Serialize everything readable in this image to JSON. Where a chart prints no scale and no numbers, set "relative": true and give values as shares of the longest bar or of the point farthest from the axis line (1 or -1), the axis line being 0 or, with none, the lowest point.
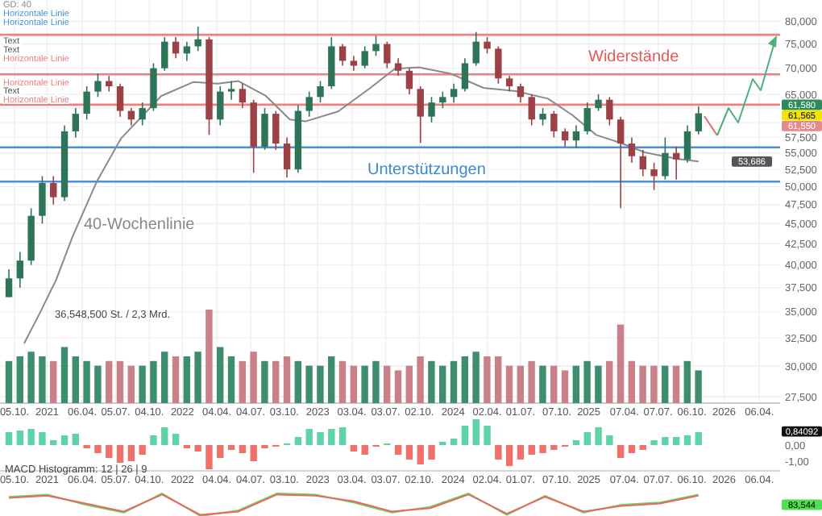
{
  "chart_data": [
    {
      "type": "candlestick",
      "log": true,
      "grid": true,
      "xlim": [
        "2020-08-27",
        "2026-06-01"
      ],
      "xticks": [
        {
          "value": "2020-10-05",
          "label": "05.10."
        },
        {
          "value": "2021-01-01",
          "label": "2021"
        },
        {
          "value": "2021-04-06",
          "label": "06.04."
        },
        {
          "value": "2021-07-05",
          "label": "05.07."
        },
        {
          "value": "2021-10-04",
          "label": "04.10."
        },
        {
          "value": "2022-01-01",
          "label": "2022"
        },
        {
          "value": "2022-04-04",
          "label": "04.04."
        },
        {
          "value": "2022-07-04",
          "label": "04.07."
        },
        {
          "value": "2022-10-03",
          "label": "03.10."
        },
        {
          "value": "2023-01-01",
          "label": "2023"
        },
        {
          "value": "2023-04-03",
          "label": "03.04."
        },
        {
          "value": "2023-07-03",
          "label": "03.07."
        },
        {
          "value": "2023-10-02",
          "label": "02.10."
        },
        {
          "value": "2024-01-01",
          "label": "2024"
        },
        {
          "value": "2024-04-02",
          "label": "02.04."
        },
        {
          "value": "2024-07-01",
          "label": "01.07."
        },
        {
          "value": "2024-10-07",
          "label": "07.10."
        },
        {
          "value": "2025-01-01",
          "label": "2025"
        },
        {
          "value": "2025-04-07",
          "label": "07.04."
        },
        {
          "value": "2025-07-07",
          "label": "07.07."
        },
        {
          "value": "2025-10-06",
          "label": "06.10."
        },
        {
          "value": "2026-01-01",
          "label": "2026"
        },
        {
          "value": "2026-04-06",
          "label": "06.04."
        }
      ],
      "ylim": [
        27000,
        85000
      ],
      "yticks": [
        {
          "value": 27500,
          "label": "27,500"
        },
        {
          "value": 30000,
          "label": "30,000"
        },
        {
          "value": 32500,
          "label": "32,500"
        },
        {
          "value": 35000,
          "label": "35,000"
        },
        {
          "value": 37500,
          "label": "37,500"
        },
        {
          "value": 40000,
          "label": "40,000"
        },
        {
          "value": 42500,
          "label": "42,500"
        },
        {
          "value": 45000,
          "label": "45,000"
        },
        {
          "value": 47500,
          "label": "47,500"
        },
        {
          "value": 50000,
          "label": "50,000"
        },
        {
          "value": 52500,
          "label": "52,500"
        },
        {
          "value": 55000,
          "label": "55,000"
        },
        {
          "value": 57500,
          "label": "57,500"
        },
        {
          "value": 60000,
          "label": null
        },
        {
          "value": 62500,
          "label": null
        },
        {
          "value": 65000,
          "label": "65,000"
        },
        {
          "value": 70000,
          "label": "70,000"
        },
        {
          "value": 75000,
          "label": "75,000"
        },
        {
          "value": 80000,
          "label": "80,000"
        }
      ],
      "x": [
        "2020-09-20",
        "2020-10-20",
        "2020-11-19",
        "2020-12-19",
        "2021-01-18",
        "2021-02-17",
        "2021-03-19",
        "2021-04-18",
        "2021-05-18",
        "2021-06-17",
        "2021-07-17",
        "2021-08-16",
        "2021-09-15",
        "2021-10-15",
        "2021-11-14",
        "2021-12-14",
        "2022-01-13",
        "2022-02-12",
        "2022-03-14",
        "2022-04-13",
        "2022-05-13",
        "2022-06-12",
        "2022-07-12",
        "2022-08-11",
        "2022-09-10",
        "2022-10-10",
        "2022-11-09",
        "2022-12-09",
        "2023-01-08",
        "2023-02-07",
        "2023-03-09",
        "2023-04-08",
        "2023-05-08",
        "2023-06-07",
        "2023-07-07",
        "2023-08-06",
        "2023-09-05",
        "2023-10-05",
        "2023-11-04",
        "2023-12-04",
        "2024-01-03",
        "2024-02-02",
        "2024-03-03",
        "2024-04-02",
        "2024-05-02",
        "2024-06-01",
        "2024-07-01",
        "2024-07-31",
        "2024-08-30",
        "2024-09-29",
        "2024-10-29",
        "2024-11-28",
        "2024-12-28",
        "2025-01-27",
        "2025-02-26",
        "2025-03-28",
        "2025-04-27",
        "2025-05-27",
        "2025-06-26",
        "2025-07-26",
        "2025-08-25",
        "2025-09-24",
        "2025-10-24"
      ],
      "ohlc": [
        [
          36500,
          39500,
          36500,
          38500
        ],
        [
          38500,
          41500,
          37500,
          40500
        ],
        [
          40500,
          47000,
          40000,
          46000
        ],
        [
          46000,
          51500,
          45000,
          50500
        ],
        [
          50500,
          51500,
          47500,
          48500
        ],
        [
          48500,
          59500,
          48000,
          58500
        ],
        [
          58500,
          62500,
          57500,
          61500
        ],
        [
          61500,
          66500,
          60500,
          65500
        ],
        [
          65500,
          69000,
          64500,
          67500
        ],
        [
          67500,
          68500,
          65500,
          66500
        ],
        [
          66500,
          67000,
          61000,
          62000
        ],
        [
          62000,
          62500,
          59500,
          60500
        ],
        [
          60500,
          63500,
          59500,
          62500
        ],
        [
          62500,
          71000,
          62000,
          70000
        ],
        [
          70000,
          76500,
          69500,
          75500
        ],
        [
          75500,
          76500,
          72000,
          73000
        ],
        [
          73000,
          75500,
          71500,
          74500
        ],
        [
          74500,
          78800,
          73500,
          76000
        ],
        [
          76000,
          76500,
          57900,
          60500
        ],
        [
          60500,
          66500,
          59500,
          65500
        ],
        [
          65500,
          67500,
          64000,
          66000
        ],
        [
          66000,
          67000,
          62500,
          63500
        ],
        [
          63500,
          64000,
          52000,
          56000
        ],
        [
          56000,
          62500,
          55500,
          61500
        ],
        [
          61500,
          62000,
          55500,
          56500
        ],
        [
          56500,
          57500,
          51300,
          52500
        ],
        [
          52500,
          63000,
          52000,
          62000
        ],
        [
          62000,
          65500,
          61000,
          64500
        ],
        [
          64500,
          67500,
          63500,
          66500
        ],
        [
          66500,
          76500,
          66000,
          74500
        ],
        [
          74500,
          75000,
          70500,
          71500
        ],
        [
          71500,
          72500,
          69500,
          70500
        ],
        [
          70500,
          74500,
          70000,
          73500
        ],
        [
          73500,
          76800,
          72500,
          75000
        ],
        [
          75000,
          75500,
          70000,
          71000
        ],
        [
          71000,
          72000,
          68500,
          69500
        ],
        [
          69500,
          70000,
          65000,
          66000
        ],
        [
          66000,
          66500,
          56600,
          61000
        ],
        [
          61000,
          64500,
          60000,
          63500
        ],
        [
          63500,
          65500,
          62500,
          64500
        ],
        [
          64500,
          67000,
          63500,
          66000
        ],
        [
          66000,
          72000,
          65500,
          71000
        ],
        [
          71000,
          77600,
          70500,
          75500
        ],
        [
          75500,
          76500,
          73000,
          74000
        ],
        [
          74000,
          74500,
          67000,
          68000
        ],
        [
          68000,
          68500,
          65500,
          66500
        ],
        [
          66500,
          67000,
          63500,
          64500
        ],
        [
          64500,
          65000,
          59500,
          60500
        ],
        [
          60500,
          62500,
          59500,
          61500
        ],
        [
          61500,
          62000,
          57500,
          58500
        ],
        [
          58500,
          59000,
          56000,
          57000
        ],
        [
          57000,
          59500,
          55800,
          58500
        ],
        [
          58500,
          63500,
          58000,
          62500
        ],
        [
          62500,
          65000,
          62000,
          64000
        ],
        [
          64000,
          64500,
          59500,
          60500
        ],
        [
          60500,
          61000,
          47000,
          56500
        ],
        [
          56500,
          57500,
          53500,
          54500
        ],
        [
          54500,
          55500,
          51500,
          52500
        ],
        [
          52500,
          53500,
          49500,
          51500
        ],
        [
          51500,
          57500,
          51000,
          55000
        ],
        [
          55000,
          56000,
          51000,
          54000
        ],
        [
          54000,
          59500,
          53500,
          58500
        ],
        [
          58500,
          62800,
          58000,
          61580
        ]
      ],
      "series": [
        {
          "type": "line",
          "name": "GD: 40",
          "color": "#8a8a8a",
          "x": [
            "2020-10-31",
            "2020-12-14",
            "2021-01-26",
            "2021-03-11",
            "2021-05-15",
            "2021-07-19",
            "2021-11-05",
            "2022-01-30",
            "2022-04-06",
            "2022-06-01",
            "2022-08-14",
            "2022-10-18",
            "2022-11-30",
            "2023-02-25",
            "2023-05-23",
            "2023-07-28",
            "2023-10-01",
            "2023-12-27",
            "2024-03-23",
            "2024-06-18",
            "2024-09-13",
            "2024-11-17",
            "2025-01-21",
            "2025-03-28",
            "2025-06-01",
            "2025-08-27",
            "2025-10-24"
          ],
          "values": [
            32000,
            35000,
            38400,
            43400,
            50700,
            57300,
            64700,
            67300,
            67000,
            67500,
            64700,
            60500,
            60200,
            61900,
            66200,
            69900,
            70200,
            68900,
            66200,
            65600,
            64200,
            61300,
            57900,
            56600,
            55100,
            54100,
            53686
          ]
        }
      ],
      "ref_lines": [
        {
          "axis": "y",
          "value": 55900,
          "label": "Horizontale Linie",
          "color": "#4a90d9"
        },
        {
          "axis": "y",
          "value": 50700,
          "label": "Horizontale Linie",
          "color": "#4a90d9"
        },
        {
          "axis": "y",
          "value": 77000,
          "label": "Horizontale Linie",
          "color": "#f07f7f"
        },
        {
          "axis": "y",
          "value": 68800,
          "label": "Horizontale Linie",
          "color": "#f07f7f"
        },
        {
          "axis": "y",
          "value": 63100,
          "label": "Horizontale Linie",
          "color": "#f07f7f"
        }
      ],
      "annotations": [
        "Text",
        "Text",
        "Text",
        "Widerstände",
        "Unterstützungen",
        "40-Wochenlinie",
        "36,548,500 St. / 2,3 Mrd.",
        "61,580",
        "61,565",
        "61,550",
        "53,686"
      ]
    },
    {
      "type": "bar",
      "relative": true,
      "categories": [
        null,
        null,
        null,
        null,
        null,
        null,
        null,
        null,
        null,
        null,
        null,
        null,
        null,
        null,
        null,
        null,
        null,
        null,
        null,
        null,
        null,
        null,
        null,
        null,
        null,
        null,
        null,
        null,
        null,
        null,
        null,
        null,
        null,
        null,
        null,
        null,
        null,
        null,
        null,
        null,
        null,
        null,
        null,
        null,
        null,
        null,
        null,
        null,
        null,
        null,
        null,
        null,
        null,
        null,
        null,
        null,
        null,
        null,
        null,
        null,
        null,
        null,
        null
      ],
      "values": [
        0.45,
        0.5,
        0.55,
        0.5,
        0.45,
        0.6,
        0.5,
        0.45,
        0.4,
        0.45,
        0.45,
        0.4,
        0.4,
        0.45,
        0.55,
        0.5,
        0.5,
        0.55,
        1.0,
        0.6,
        0.5,
        0.45,
        0.55,
        0.45,
        0.45,
        0.5,
        0.45,
        0.4,
        0.4,
        0.5,
        0.45,
        0.4,
        0.4,
        0.45,
        0.4,
        0.35,
        0.4,
        0.5,
        0.45,
        0.4,
        0.45,
        0.5,
        0.55,
        0.5,
        0.5,
        0.4,
        0.4,
        0.45,
        0.4,
        0.4,
        0.35,
        0.4,
        0.45,
        0.4,
        0.45,
        0.84,
        0.45,
        0.4,
        0.4,
        0.4,
        0.4,
        0.45,
        0.35
      ],
      "colors": [
        "#3e8e6e",
        "#3e8e6e",
        "#3e8e6e",
        "#3e8e6e",
        "#c98088",
        "#3e8e6e",
        "#3e8e6e",
        "#3e8e6e",
        "#3e8e6e",
        "#c98088",
        "#c98088",
        "#c98088",
        "#3e8e6e",
        "#3e8e6e",
        "#3e8e6e",
        "#c98088",
        "#3e8e6e",
        "#3e8e6e",
        "#c98088",
        "#3e8e6e",
        "#3e8e6e",
        "#c98088",
        "#c98088",
        "#3e8e6e",
        "#c98088",
        "#c98088",
        "#3e8e6e",
        "#3e8e6e",
        "#3e8e6e",
        "#3e8e6e",
        "#c98088",
        "#c98088",
        "#3e8e6e",
        "#3e8e6e",
        "#c98088",
        "#c98088",
        "#c98088",
        "#c98088",
        "#3e8e6e",
        "#3e8e6e",
        "#3e8e6e",
        "#3e8e6e",
        "#3e8e6e",
        "#c98088",
        "#c98088",
        "#c98088",
        "#c98088",
        "#c98088",
        "#3e8e6e",
        "#c98088",
        "#c98088",
        "#3e8e6e",
        "#3e8e6e",
        "#3e8e6e",
        "#c98088",
        "#c98088",
        "#c98088",
        "#c98088",
        "#c98088",
        "#3e8e6e",
        "#c98088",
        "#3e8e6e",
        "#3e8e6e"
      ]
    },
    {
      "type": "bar",
      "title": "MACD Histogramm: 12 | 26 | 9",
      "xlim": [
        "2020-08-27",
        "2026-06-01"
      ],
      "xticks": [
        {
          "value": "2020-10-05",
          "label": "05.10."
        },
        {
          "value": "2021-01-01",
          "label": "2021"
        },
        {
          "value": "2021-04-06",
          "label": "06.04."
        },
        {
          "value": "2021-07-05",
          "label": "05.07."
        },
        {
          "value": "2021-10-04",
          "label": "04.10."
        },
        {
          "value": "2022-01-01",
          "label": "2022"
        },
        {
          "value": "2022-04-04",
          "label": "04.04."
        },
        {
          "value": "2022-07-04",
          "label": "04.07."
        },
        {
          "value": "2022-10-03",
          "label": "03.10."
        },
        {
          "value": "2023-01-01",
          "label": "2023"
        },
        {
          "value": "2023-04-03",
          "label": "03.04."
        },
        {
          "value": "2023-07-03",
          "label": "03.07."
        },
        {
          "value": "2023-10-02",
          "label": "02.10."
        },
        {
          "value": "2024-01-01",
          "label": "2024"
        },
        {
          "value": "2024-04-02",
          "label": "02.04."
        },
        {
          "value": "2024-07-01",
          "label": "01.07."
        },
        {
          "value": "2024-10-07",
          "label": "07.10."
        },
        {
          "value": "2025-01-01",
          "label": "2025"
        },
        {
          "value": "2025-04-07",
          "label": "07.04."
        },
        {
          "value": "2025-07-07",
          "label": "07.07."
        },
        {
          "value": "2025-10-06",
          "label": "06.10."
        },
        {
          "value": "2026-01-01",
          "label": "2026"
        },
        {
          "value": "2026-04-06",
          "label": "06.04."
        }
      ],
      "ylim": [
        -1.6,
        1.8
      ],
      "yticks": [
        {
          "value": 0,
          "label": "0,00"
        },
        {
          "value": -1,
          "label": "-1,00"
        }
      ],
      "x": [
        "2020-09-20",
        "2020-10-20",
        "2020-11-19",
        "2020-12-19",
        "2021-01-18",
        "2021-02-17",
        "2021-03-19",
        "2021-04-18",
        "2021-05-18",
        "2021-06-17",
        "2021-07-17",
        "2021-08-16",
        "2021-09-15",
        "2021-10-15",
        "2021-11-14",
        "2021-12-14",
        "2022-01-13",
        "2022-02-12",
        "2022-03-14",
        "2022-04-13",
        "2022-05-13",
        "2022-06-12",
        "2022-07-12",
        "2022-08-11",
        "2022-09-10",
        "2022-10-10",
        "2022-11-09",
        "2022-12-09",
        "2023-01-08",
        "2023-02-07",
        "2023-03-09",
        "2023-04-08",
        "2023-05-08",
        "2023-06-07",
        "2023-07-07",
        "2023-08-06",
        "2023-09-05",
        "2023-10-05",
        "2023-11-04",
        "2023-12-04",
        "2024-01-03",
        "2024-02-02",
        "2024-03-03",
        "2024-04-02",
        "2024-05-02",
        "2024-06-01",
        "2024-07-01",
        "2024-07-31",
        "2024-08-30",
        "2024-09-29",
        "2024-10-29",
        "2024-11-28",
        "2024-12-28",
        "2025-01-27",
        "2025-02-26",
        "2025-03-28",
        "2025-04-27",
        "2025-05-27",
        "2025-06-26",
        "2025-07-26",
        "2025-08-25",
        "2025-09-24",
        "2025-10-24"
      ],
      "values": [
        0.8,
        0.9,
        1.0,
        0.8,
        0.3,
        0.6,
        0.7,
        -0.2,
        -0.5,
        -0.8,
        -1.1,
        -1.0,
        -0.6,
        0.6,
        1.1,
        0.7,
        -0.2,
        -0.4,
        -1.5,
        -0.8,
        -0.3,
        -0.5,
        -1.0,
        -0.2,
        -0.1,
        0.1,
        0.5,
        1.0,
        0.8,
        1.0,
        1.1,
        -0.4,
        -0.6,
        -0.1,
        0.1,
        -0.6,
        -0.9,
        -1.2,
        -0.9,
        0.2,
        0.4,
        1.2,
        1.6,
        1.2,
        -0.9,
        -1.3,
        -0.9,
        -0.6,
        -0.5,
        -0.3,
        -0.1,
        0.3,
        0.8,
        1.1,
        0.6,
        -0.8,
        -0.5,
        -0.3,
        0.3,
        0.5,
        0.5,
        0.6,
        0.8
      ],
      "colors": [
        "#5ed3a6",
        "#5ed3a6",
        "#5ed3a6",
        "#5ed3a6",
        "#5ed3a6",
        "#5ed3a6",
        "#5ed3a6",
        "#f0706a",
        "#f0706a",
        "#f0706a",
        "#f0706a",
        "#f0706a",
        "#f0706a",
        "#5ed3a6",
        "#5ed3a6",
        "#5ed3a6",
        "#f0706a",
        "#f0706a",
        "#f0706a",
        "#f0706a",
        "#f0706a",
        "#f0706a",
        "#f0706a",
        "#f0706a",
        "#f0706a",
        "#5ed3a6",
        "#5ed3a6",
        "#5ed3a6",
        "#5ed3a6",
        "#5ed3a6",
        "#5ed3a6",
        "#f0706a",
        "#f0706a",
        "#f0706a",
        "#5ed3a6",
        "#f0706a",
        "#f0706a",
        "#f0706a",
        "#f0706a",
        "#5ed3a6",
        "#5ed3a6",
        "#5ed3a6",
        "#5ed3a6",
        "#5ed3a6",
        "#f0706a",
        "#f0706a",
        "#f0706a",
        "#f0706a",
        "#f0706a",
        "#f0706a",
        "#f0706a",
        "#5ed3a6",
        "#5ed3a6",
        "#5ed3a6",
        "#5ed3a6",
        "#f0706a",
        "#f0706a",
        "#f0706a",
        "#5ed3a6",
        "#5ed3a6",
        "#5ed3a6",
        "#5ed3a6",
        "#5ed3a6"
      ],
      "annotations": [
        "0,84092"
      ]
    },
    {
      "type": "line",
      "relative": true,
      "categories": [
        null,
        null,
        null,
        null,
        null,
        null,
        null,
        null,
        null,
        null,
        null,
        null,
        null,
        null,
        null,
        null,
        null,
        null,
        null
      ],
      "series": [
        {
          "color": "#5fd85f",
          "values": [
            0.85,
            0.95,
            0.5,
            0.15,
            1.0,
            0,
            0.25,
            1.0,
            0.95,
            0.6,
            0.15,
            0.4,
            1.0,
            0.05,
            0.9,
            0.15,
            0.5,
            0.6,
            0.95
          ]
        },
        {
          "color": "#f06464",
          "values": [
            0.8,
            0.9,
            0.55,
            0.2,
            0.95,
            0.05,
            0.2,
            0.95,
            0.9,
            0.65,
            0.2,
            0.35,
            0.95,
            0.1,
            0.85,
            0.2,
            0.45,
            0.55,
            0.9
          ]
        }
      ],
      "annotations": [
        "83,544"
      ]
    }
  ]
}
